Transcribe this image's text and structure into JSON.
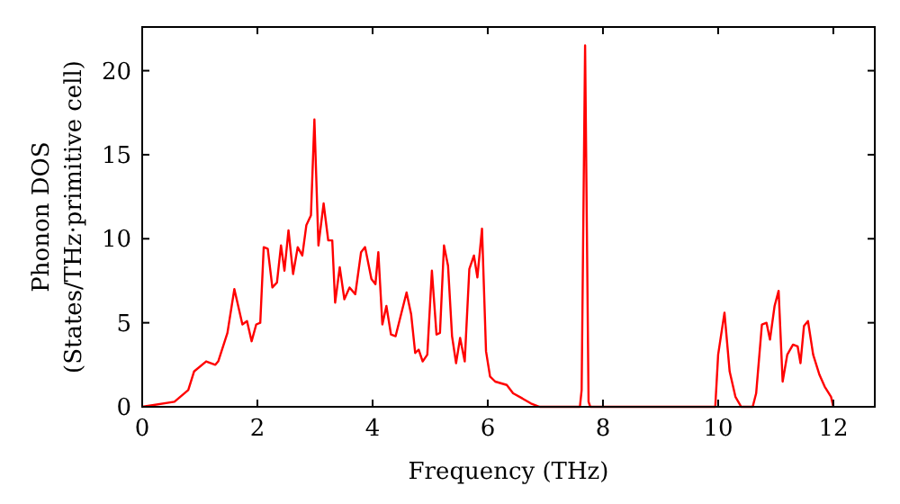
{
  "chart_data": {
    "type": "line",
    "xlabel": "Frequency (THz)",
    "ylabel": "Phonon DOS\n(States/THz·primitive cell)",
    "xlim": [
      0,
      12.72
    ],
    "ylim": [
      0,
      22.6
    ],
    "xticks": [
      0,
      2,
      4,
      6,
      8,
      10,
      12
    ],
    "yticks": [
      0,
      5,
      10,
      15,
      20
    ],
    "grid": false,
    "marker": "none",
    "line_style": "solid",
    "series": [
      {
        "color": "#ff0000",
        "x": [
          0,
          0.56,
          0.8,
          0.9,
          1.11,
          1.27,
          1.32,
          1.48,
          1.6,
          1.74,
          1.82,
          1.9,
          1.98,
          2.05,
          2.11,
          2.18,
          2.26,
          2.34,
          2.41,
          2.47,
          2.54,
          2.62,
          2.7,
          2.78,
          2.85,
          2.93,
          2.99,
          3.06,
          3.15,
          3.23,
          3.3,
          3.35,
          3.43,
          3.51,
          3.6,
          3.7,
          3.8,
          3.87,
          3.98,
          4.05,
          4.1,
          4.17,
          4.24,
          4.32,
          4.4,
          4.59,
          4.67,
          4.74,
          4.8,
          4.87,
          4.95,
          5.03,
          5.11,
          5.17,
          5.24,
          5.31,
          5.38,
          5.45,
          5.52,
          5.6,
          5.68,
          5.76,
          5.82,
          5.9,
          5.97,
          6.04,
          6.13,
          6.33,
          6.44,
          6.6,
          6.75,
          6.9,
          7.6,
          7.63,
          7.69,
          7.75,
          7.78,
          9.95,
          10.0,
          10.11,
          10.2,
          10.3,
          10.4,
          10.6,
          10.66,
          10.76,
          10.84,
          10.9,
          10.98,
          11.05,
          11.12,
          11.2,
          11.3,
          11.38,
          11.43,
          11.49,
          11.56,
          11.65,
          11.76,
          11.85,
          11.96,
          12.0
        ],
        "values": [
          0,
          0.3,
          1.0,
          2.1,
          2.7,
          2.5,
          2.7,
          4.4,
          7.0,
          4.9,
          5.1,
          3.9,
          4.9,
          5.0,
          9.5,
          9.4,
          7.1,
          7.4,
          9.6,
          8.1,
          10.5,
          7.9,
          9.5,
          9.0,
          10.8,
          11.4,
          17.1,
          9.6,
          12.1,
          9.9,
          9.9,
          6.2,
          8.3,
          6.4,
          7.1,
          6.7,
          9.2,
          9.5,
          7.6,
          7.3,
          9.2,
          4.9,
          6.0,
          4.3,
          4.2,
          6.8,
          5.5,
          3.2,
          3.4,
          2.7,
          3.1,
          8.1,
          4.3,
          4.4,
          9.6,
          8.4,
          4.2,
          2.6,
          4.1,
          2.7,
          8.2,
          9.0,
          7.7,
          10.6,
          3.3,
          1.8,
          1.5,
          1.3,
          0.8,
          0.5,
          0.2,
          0,
          0,
          1,
          21.5,
          0.3,
          0,
          0,
          3.1,
          5.6,
          2.1,
          0.6,
          0,
          0,
          0.8,
          4.9,
          5.0,
          4.0,
          6.0,
          6.9,
          1.5,
          3.1,
          3.7,
          3.6,
          2.6,
          4.8,
          5.1,
          3.1,
          1.9,
          1.2,
          0.6,
          0
        ]
      }
    ]
  }
}
